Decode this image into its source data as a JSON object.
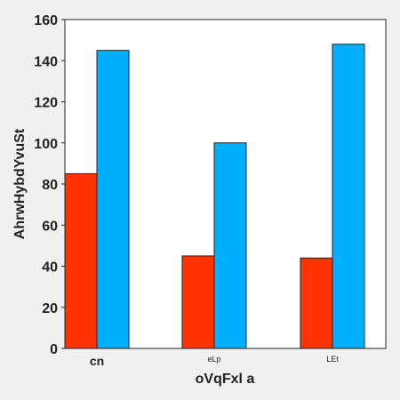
{
  "chart_data": {
    "type": "bar",
    "title": "",
    "xlabel": "oVqFxl a",
    "ylabel": "AhrwHybdYvuSt",
    "categories": [
      "cn",
      "eLp",
      "LEt"
    ],
    "series": [
      {
        "values": [
          85,
          45,
          44
        ],
        "color": "#ff3300"
      },
      {
        "values": [
          145,
          100,
          148
        ],
        "color": "#00b0ff"
      }
    ],
    "ylim": [
      0,
      160
    ],
    "yticks": [
      0,
      20,
      40,
      60,
      80,
      100,
      120,
      140,
      160
    ],
    "grid": false,
    "legend": false
  }
}
